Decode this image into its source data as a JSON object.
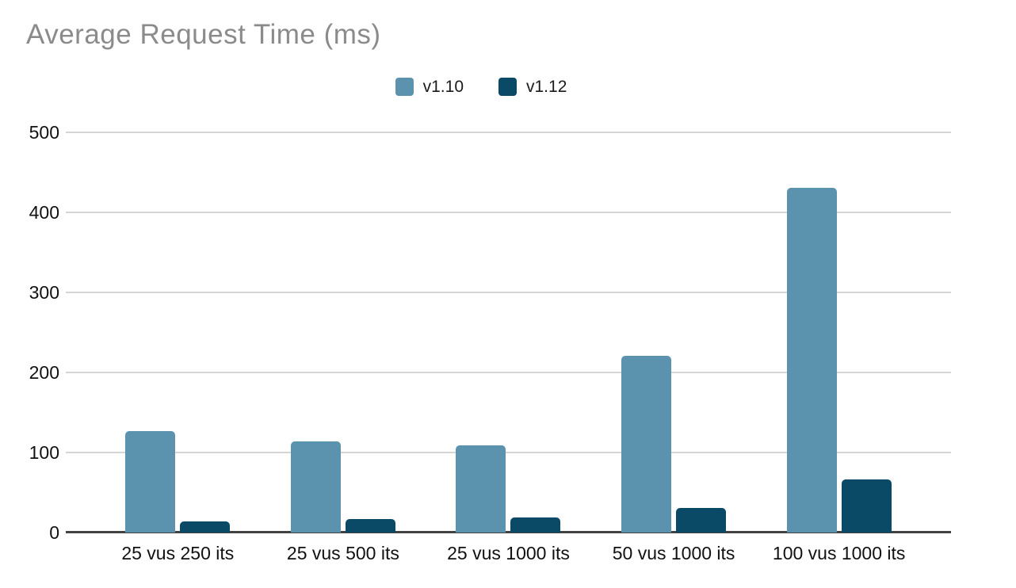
{
  "chart_data": {
    "type": "bar",
    "title": "Average Request Time (ms)",
    "xlabel": "",
    "ylabel": "",
    "categories": [
      "25 vus 250 its",
      "25 vus 500 its",
      "25 vus 1000 its",
      "50 vus 1000 its",
      "100 vus 1000 its"
    ],
    "series": [
      {
        "name": "v1.10",
        "color": "#5b93ae",
        "values": [
          127,
          114,
          109,
          221,
          431
        ]
      },
      {
        "name": "v1.12",
        "color": "#0b4a66",
        "values": [
          14,
          17,
          19,
          31,
          66
        ]
      }
    ],
    "ylim": [
      0,
      500
    ],
    "yticks": [
      0,
      100,
      200,
      300,
      400,
      500
    ],
    "grid": true,
    "legend_position": "top-center"
  },
  "style": {
    "title_color": "#8b8b8b",
    "gridline_color": "#d5d5d5",
    "axis_color": "#424242",
    "tick_text_color": "#111111",
    "background": "#ffffff"
  }
}
